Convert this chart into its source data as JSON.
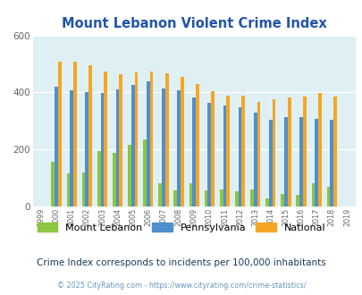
{
  "title": "Mount Lebanon Violent Crime Index",
  "years": [
    1999,
    2000,
    2001,
    2002,
    2003,
    2004,
    2005,
    2006,
    2007,
    2008,
    2009,
    2010,
    2011,
    2012,
    2013,
    2014,
    2015,
    2016,
    2017,
    2018,
    2019
  ],
  "mount_lebanon": [
    0,
    158,
    115,
    120,
    195,
    188,
    215,
    235,
    82,
    57,
    80,
    55,
    60,
    52,
    58,
    28,
    43,
    42,
    83,
    70,
    0
  ],
  "pennsylvania": [
    0,
    420,
    408,
    400,
    398,
    410,
    425,
    440,
    415,
    408,
    383,
    365,
    355,
    348,
    328,
    305,
    312,
    312,
    308,
    305,
    0
  ],
  "national": [
    0,
    507,
    507,
    496,
    473,
    463,
    470,
    474,
    467,
    455,
    430,
    405,
    388,
    388,
    368,
    375,
    383,
    387,
    397,
    385,
    0
  ],
  "ylim": [
    0,
    600
  ],
  "yticks": [
    0,
    200,
    400,
    600
  ],
  "color_ml": "#8dc63f",
  "color_pa": "#4e8fce",
  "color_nat": "#f5a623",
  "bg_color": "#dff0f5",
  "subtitle": "Crime Index corresponds to incidents per 100,000 inhabitants",
  "footer": "© 2025 CityRating.com - https://www.cityrating.com/crime-statistics/",
  "title_color": "#2255aa",
  "subtitle_color": "#1a3a5c",
  "footer_color": "#6699bb"
}
